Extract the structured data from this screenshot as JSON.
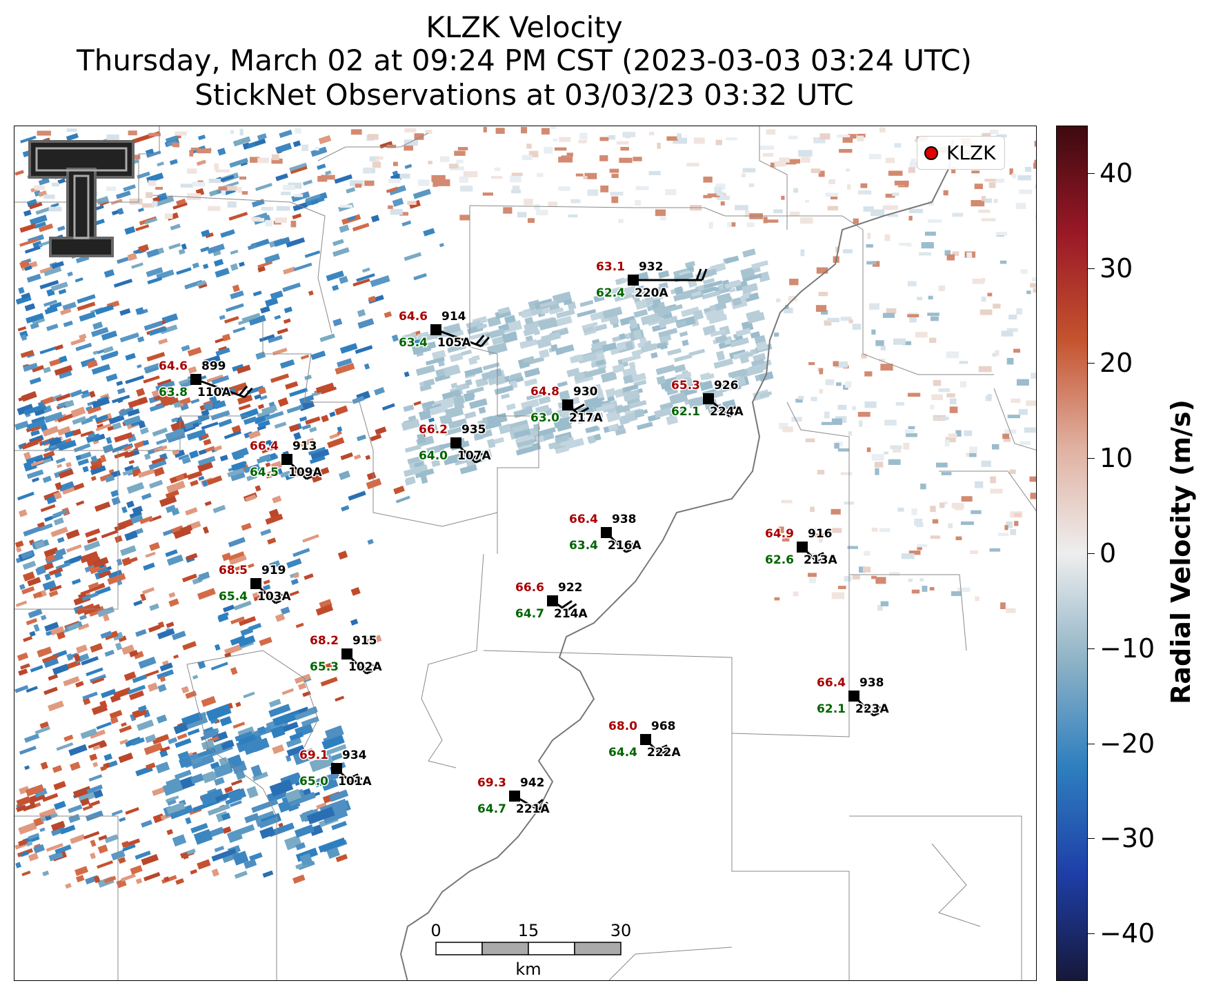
{
  "title": {
    "line1": "KLZK Velocity",
    "line2": "Thursday, March 02 at 09:24 PM CST (2023-03-03 03:24 UTC)",
    "line3": "StickNet Observations at 03/03/23 03:32 UTC"
  },
  "legend": {
    "marker_color": "#e00000",
    "label": "KLZK"
  },
  "colorbar": {
    "label": "Radial Velocity (m/s)",
    "range": [
      -45,
      45
    ],
    "ticks": [
      "40",
      "30",
      "20",
      "10",
      "0",
      "−10",
      "−20",
      "−30",
      "−40"
    ],
    "colormap": [
      "#16183a",
      "#1e3fa8",
      "#2e7fbf",
      "#8fb3c6",
      "#eeeeee",
      "#e0b0a0",
      "#c5532f",
      "#9a1826",
      "#3d0a10"
    ]
  },
  "scale_bar": {
    "ticks": [
      "0",
      "15",
      "30"
    ],
    "unit": "km"
  },
  "logo": {
    "text": "TT"
  },
  "stations": [
    {
      "id": "932",
      "probe": "220A",
      "temp": "63.1",
      "dew": "62.4"
    },
    {
      "id": "914",
      "probe": "105A",
      "temp": "64.6",
      "dew": "63.4"
    },
    {
      "id": "899",
      "probe": "110A",
      "temp": "64.6",
      "dew": "63.8"
    },
    {
      "id": "930",
      "probe": "217A",
      "temp": "64.8",
      "dew": "63.0"
    },
    {
      "id": "926",
      "probe": "224A",
      "temp": "65.3",
      "dew": "62.1"
    },
    {
      "id": "935",
      "probe": "107A",
      "temp": "66.2",
      "dew": "64.0"
    },
    {
      "id": "913",
      "probe": "109A",
      "temp": "66.4",
      "dew": "64.5"
    },
    {
      "id": "938",
      "probe": "216A",
      "temp": "66.4",
      "dew": "63.4"
    },
    {
      "id": "916",
      "probe": "213A",
      "temp": "64.9",
      "dew": "62.6"
    },
    {
      "id": "919",
      "probe": "103A",
      "temp": "68.5",
      "dew": "65.4"
    },
    {
      "id": "922",
      "probe": "214A",
      "temp": "66.6",
      "dew": "64.7"
    },
    {
      "id": "915",
      "probe": "102A",
      "temp": "68.2",
      "dew": "65.3"
    },
    {
      "id": "938",
      "probe": "223A",
      "temp": "66.4",
      "dew": "62.1"
    },
    {
      "id": "968",
      "probe": "222A",
      "temp": "68.0",
      "dew": "64.4"
    },
    {
      "id": "934",
      "probe": "101A",
      "temp": "69.1",
      "dew": "65.0"
    },
    {
      "id": "942",
      "probe": "221A",
      "temp": "69.3",
      "dew": "64.7"
    }
  ]
}
